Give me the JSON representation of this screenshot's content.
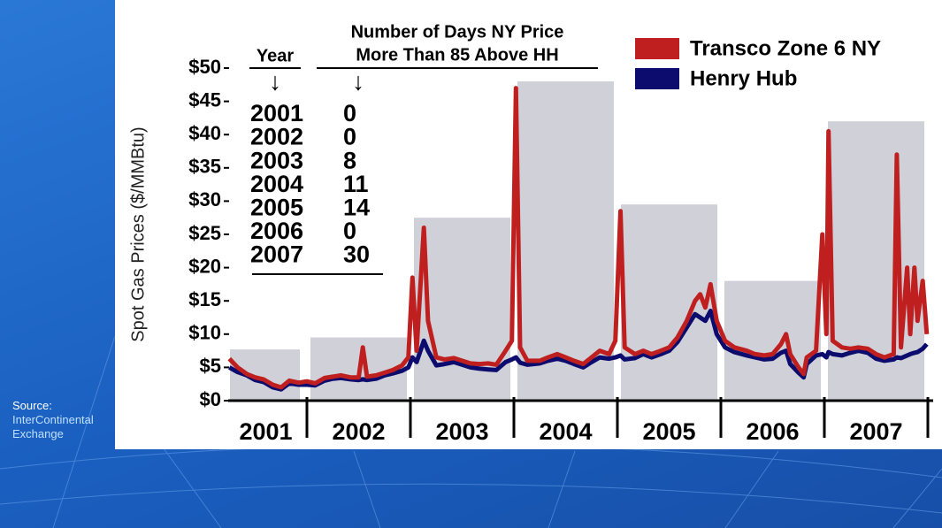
{
  "source": [
    "Source:",
    "InterContinental",
    "Exchange"
  ],
  "chart_data": {
    "type": "line",
    "y_label": "Spot Gas Prices ($/MMBtu)",
    "categories": [
      "2001",
      "2002",
      "2003",
      "2004",
      "2005",
      "2006",
      "2007"
    ],
    "background_bars": [
      7.7,
      9.5,
      27.5,
      48,
      29.5,
      18,
      42
    ],
    "background_color": "#cfd0d8",
    "xlim": [
      2001,
      2008
    ],
    "xticks": [
      2002,
      2003,
      2004,
      2005,
      2006,
      2007,
      2008
    ],
    "ylim": [
      0,
      50
    ],
    "yticks": [
      {
        "value": 0,
        "label": "$0"
      },
      {
        "value": 5,
        "label": "$5"
      },
      {
        "value": 10,
        "label": "$10"
      },
      {
        "value": 15,
        "label": "$15"
      },
      {
        "value": 20,
        "label": "$20"
      },
      {
        "value": 25,
        "label": "$25"
      },
      {
        "value": 30,
        "label": "$30"
      },
      {
        "value": 35,
        "label": "$35"
      },
      {
        "value": 40,
        "label": "$40"
      },
      {
        "value": 45,
        "label": "$45"
      },
      {
        "value": 50,
        "label": "$50"
      }
    ],
    "x": [
      2001.25,
      2001.33,
      2001.42,
      2001.5,
      2001.58,
      2001.67,
      2001.75,
      2001.83,
      2001.92,
      2002.0,
      2002.08,
      2002.17,
      2002.25,
      2002.33,
      2002.42,
      2002.5,
      2002.54,
      2002.58,
      2002.67,
      2002.75,
      2002.83,
      2002.92,
      2002.98,
      2003.02,
      2003.06,
      2003.13,
      2003.17,
      2003.25,
      2003.33,
      2003.42,
      2003.5,
      2003.58,
      2003.67,
      2003.75,
      2003.83,
      2003.92,
      2003.98,
      2004.02,
      2004.06,
      2004.13,
      2004.25,
      2004.33,
      2004.42,
      2004.5,
      2004.58,
      2004.67,
      2004.75,
      2004.83,
      2004.92,
      2004.98,
      2005.03,
      2005.07,
      2005.17,
      2005.25,
      2005.33,
      2005.42,
      2005.5,
      2005.58,
      2005.67,
      2005.75,
      2005.8,
      2005.85,
      2005.9,
      2005.96,
      2006.04,
      2006.13,
      2006.25,
      2006.33,
      2006.42,
      2006.5,
      2006.58,
      2006.63,
      2006.67,
      2006.75,
      2006.8,
      2006.83,
      2006.92,
      2006.98,
      2007.02,
      2007.04,
      2007.08,
      2007.17,
      2007.25,
      2007.33,
      2007.42,
      2007.5,
      2007.58,
      2007.67,
      2007.7,
      2007.74,
      2007.8,
      2007.83,
      2007.87,
      2007.9,
      2007.95,
      2007.99
    ],
    "series": [
      {
        "name": "Henry Hub",
        "color": "#0c0c6e",
        "values": [
          5.0,
          4.3,
          3.8,
          3.1,
          2.8,
          2.0,
          1.7,
          2.6,
          2.4,
          2.4,
          2.3,
          3.0,
          3.3,
          3.4,
          3.2,
          3.1,
          3.2,
          3.1,
          3.3,
          3.8,
          4.1,
          4.5,
          5.0,
          6.5,
          5.8,
          9.0,
          7.5,
          5.3,
          5.5,
          5.8,
          5.4,
          5.0,
          4.8,
          4.7,
          4.6,
          5.8,
          6.2,
          6.5,
          5.7,
          5.4,
          5.6,
          6.0,
          6.3,
          6.0,
          5.5,
          5.0,
          5.8,
          6.5,
          6.3,
          6.5,
          6.8,
          6.2,
          6.4,
          7.0,
          6.5,
          7.0,
          7.5,
          8.8,
          11.0,
          13.0,
          12.5,
          12.0,
          13.5,
          10.0,
          8.0,
          7.3,
          6.8,
          6.5,
          6.2,
          6.3,
          7.2,
          7.5,
          5.5,
          4.2,
          3.5,
          5.5,
          6.8,
          7.0,
          6.5,
          7.3,
          7.0,
          6.8,
          7.2,
          7.5,
          7.2,
          6.3,
          6.0,
          6.2,
          6.5,
          6.4,
          6.8,
          7.0,
          7.2,
          7.3,
          7.8,
          8.5
        ]
      },
      {
        "name": "Transco Zone 6 NY",
        "color": "#bf1f1f",
        "values": [
          6.3,
          5.0,
          4.0,
          3.5,
          3.2,
          2.4,
          2.0,
          3.0,
          2.7,
          2.9,
          2.6,
          3.4,
          3.6,
          3.8,
          3.5,
          3.5,
          8.0,
          3.6,
          3.8,
          4.2,
          4.6,
          5.3,
          6.5,
          18.5,
          7.5,
          26.0,
          12.0,
          6.5,
          6.2,
          6.4,
          6.0,
          5.6,
          5.5,
          5.6,
          5.4,
          7.5,
          9.0,
          47.0,
          8.0,
          6.0,
          6.0,
          6.5,
          7.0,
          6.5,
          6.0,
          5.5,
          6.5,
          7.5,
          7.0,
          9.0,
          28.5,
          8.0,
          7.0,
          7.5,
          7.0,
          7.5,
          8.0,
          9.5,
          12.0,
          15.0,
          16.0,
          14.0,
          17.5,
          12.0,
          9.0,
          8.0,
          7.5,
          7.0,
          6.8,
          7.0,
          8.5,
          10.0,
          7.0,
          5.0,
          4.0,
          6.5,
          7.5,
          25.0,
          10.0,
          40.5,
          9.0,
          8.0,
          7.8,
          8.0,
          7.8,
          7.0,
          6.5,
          7.0,
          37.0,
          8.0,
          20.0,
          10.0,
          20.0,
          12.0,
          18.0,
          10.0
        ]
      }
    ],
    "legend": "top-right",
    "table": {
      "header": [
        "Year",
        "Number of Days NY Price",
        "More Than 85 Above HH"
      ],
      "arrow": "↓",
      "rows": [
        [
          "2001",
          "0"
        ],
        [
          "2002",
          "0"
        ],
        [
          "2003",
          "8"
        ],
        [
          "2004",
          "11"
        ],
        [
          "2005",
          "14"
        ],
        [
          "2006",
          "0"
        ],
        [
          "2007",
          "30"
        ]
      ]
    }
  }
}
